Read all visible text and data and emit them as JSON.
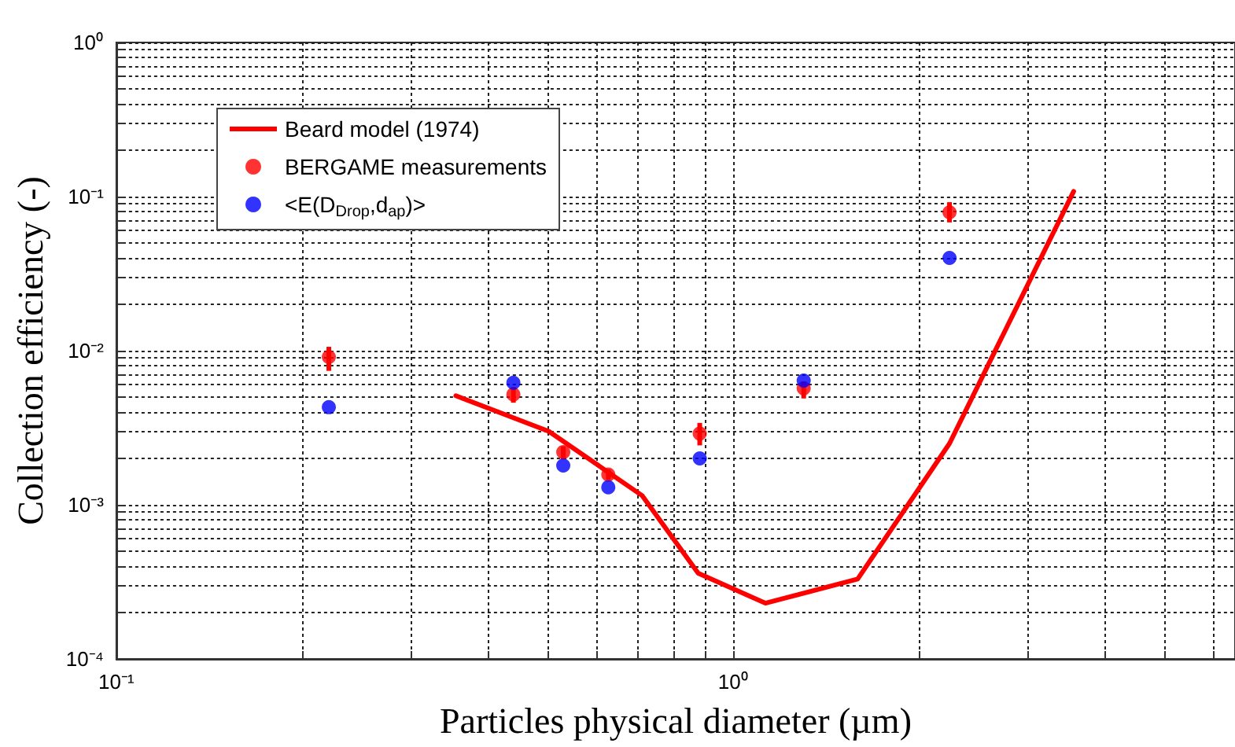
{
  "chart_data": {
    "type": "scatter",
    "xlabel": "Particles physical diameter (µm)",
    "ylabel": "Collection efficiency (-)",
    "log": "xy",
    "grid": true,
    "legend": "top left",
    "xlim": [
      0.1,
      6.5
    ],
    "xticks": [
      {
        "value": 0.1,
        "label": "10⁻¹"
      },
      {
        "value": 0.2,
        "label": null
      },
      {
        "value": 0.3,
        "label": null
      },
      {
        "value": 0.4,
        "label": null
      },
      {
        "value": 0.5,
        "label": null
      },
      {
        "value": 0.6,
        "label": null
      },
      {
        "value": 0.7,
        "label": null
      },
      {
        "value": 0.8,
        "label": null
      },
      {
        "value": 0.9,
        "label": null
      },
      {
        "value": 1,
        "label": "10⁰"
      },
      {
        "value": 2,
        "label": null
      },
      {
        "value": 3,
        "label": null
      },
      {
        "value": 4,
        "label": null
      },
      {
        "value": 5,
        "label": null
      },
      {
        "value": 6,
        "label": null
      }
    ],
    "ylim": [
      0.0001,
      1
    ],
    "yticks": [
      {
        "value": 0.0001,
        "label": "10⁻⁴"
      },
      {
        "value": 0.0002,
        "label": null
      },
      {
        "value": 0.0003,
        "label": null
      },
      {
        "value": 0.0004,
        "label": null
      },
      {
        "value": 0.0005,
        "label": null
      },
      {
        "value": 0.0006,
        "label": null
      },
      {
        "value": 0.0007,
        "label": null
      },
      {
        "value": 0.0008,
        "label": null
      },
      {
        "value": 0.0009,
        "label": null
      },
      {
        "value": 0.001,
        "label": "10⁻³"
      },
      {
        "value": 0.002,
        "label": null
      },
      {
        "value": 0.003,
        "label": null
      },
      {
        "value": 0.004,
        "label": null
      },
      {
        "value": 0.005,
        "label": null
      },
      {
        "value": 0.006,
        "label": null
      },
      {
        "value": 0.007,
        "label": null
      },
      {
        "value": 0.008,
        "label": null
      },
      {
        "value": 0.009,
        "label": null
      },
      {
        "value": 0.01,
        "label": "10⁻²"
      },
      {
        "value": 0.02,
        "label": null
      },
      {
        "value": 0.03,
        "label": null
      },
      {
        "value": 0.04,
        "label": null
      },
      {
        "value": 0.05,
        "label": null
      },
      {
        "value": 0.06,
        "label": null
      },
      {
        "value": 0.07,
        "label": null
      },
      {
        "value": 0.08,
        "label": null
      },
      {
        "value": 0.09,
        "label": null
      },
      {
        "value": 0.1,
        "label": "10⁻¹"
      },
      {
        "value": 0.2,
        "label": null
      },
      {
        "value": 0.3,
        "label": null
      },
      {
        "value": 0.4,
        "label": null
      },
      {
        "value": 0.5,
        "label": null
      },
      {
        "value": 0.6,
        "label": null
      },
      {
        "value": 0.7,
        "label": null
      },
      {
        "value": 0.8,
        "label": null
      },
      {
        "value": 0.9,
        "label": null
      },
      {
        "value": 1,
        "label": "10⁰"
      }
    ],
    "series": [
      {
        "name": "Beard model (1974)",
        "type": "line",
        "color": "#ff0000",
        "marker": "none",
        "x": [
          0.355,
          0.502,
          0.711,
          0.877,
          1.127,
          1.59,
          2.24,
          3.56
        ],
        "values": [
          0.0051,
          0.003,
          0.00115,
          0.00036,
          0.00023,
          0.00033,
          0.0025,
          0.108
        ]
      },
      {
        "name": "BERGAME measurements",
        "color": "#ff0000",
        "marker": "circle",
        "x": [
          0.221,
          0.44,
          0.53,
          0.627,
          0.882,
          1.3,
          2.24
        ],
        "values": [
          0.0091,
          0.0052,
          0.0022,
          0.00157,
          0.0029,
          0.0057,
          0.079
        ],
        "errors": [
          [
            0.0074,
            0.0106
          ],
          [
            0.0046,
            0.0058
          ],
          [
            0.00197,
            0.0024
          ],
          [
            0.00145,
            0.0017
          ],
          [
            0.00243,
            0.0034
          ],
          [
            0.0049,
            0.0063
          ],
          [
            0.068,
            0.092
          ]
        ]
      },
      {
        "name": "<E(D$_{Drop}$,d$_{ap}$)>",
        "color": "#0000ff",
        "marker": "circle",
        "x": [
          0.221,
          0.44,
          0.53,
          0.627,
          0.882,
          1.3,
          2.24
        ],
        "values": [
          0.0043,
          0.0062,
          0.0018,
          0.0013,
          0.002,
          0.0064,
          0.04
        ]
      }
    ]
  }
}
